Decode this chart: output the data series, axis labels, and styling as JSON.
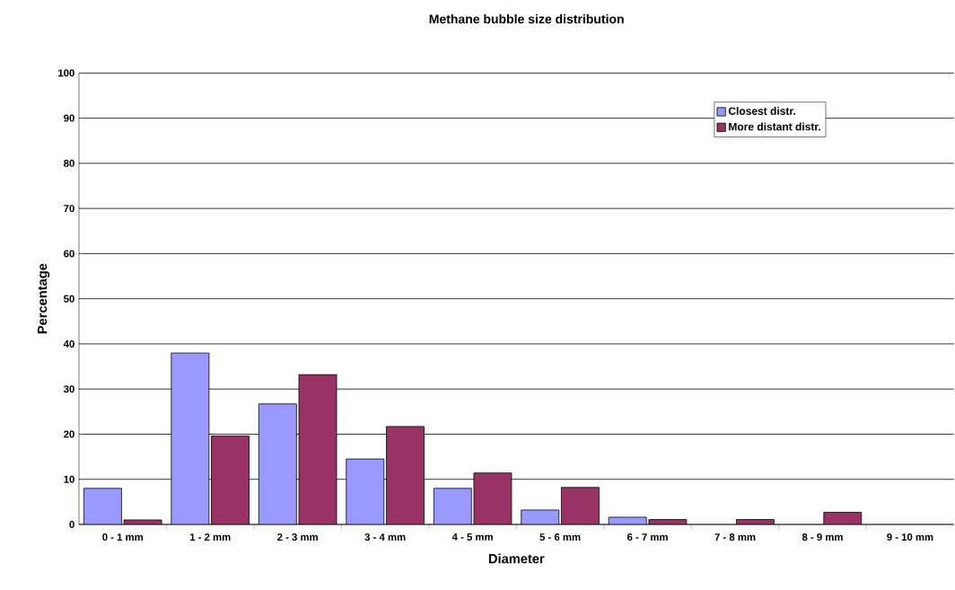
{
  "chart_data": {
    "type": "bar",
    "title": "Methane bubble size distribution",
    "xlabel": "Diameter",
    "ylabel": "Percentage",
    "categories": [
      "0 - 1 mm",
      "1 - 2 mm",
      "2 - 3 mm",
      "3 - 4 mm",
      "4 - 5 mm",
      "5 - 6 mm",
      "6 - 7 mm",
      "7 - 8 mm",
      "8 - 9 mm",
      "9 - 10 mm"
    ],
    "series": [
      {
        "name": "Closest distr.",
        "color": "#9999ff",
        "values": [
          8.0,
          38.0,
          26.7,
          14.5,
          8.0,
          3.2,
          1.6,
          null,
          null,
          null
        ]
      },
      {
        "name": "More distant distr.",
        "color": "#993366",
        "values": [
          1.0,
          19.6,
          33.2,
          21.7,
          11.4,
          8.2,
          1.1,
          1.1,
          2.7,
          null
        ]
      }
    ],
    "ylim": [
      0,
      100
    ],
    "yticks": [
      0,
      10,
      20,
      30,
      40,
      50,
      60,
      70,
      80,
      90,
      100
    ],
    "grid": "y",
    "legend": "top right"
  }
}
